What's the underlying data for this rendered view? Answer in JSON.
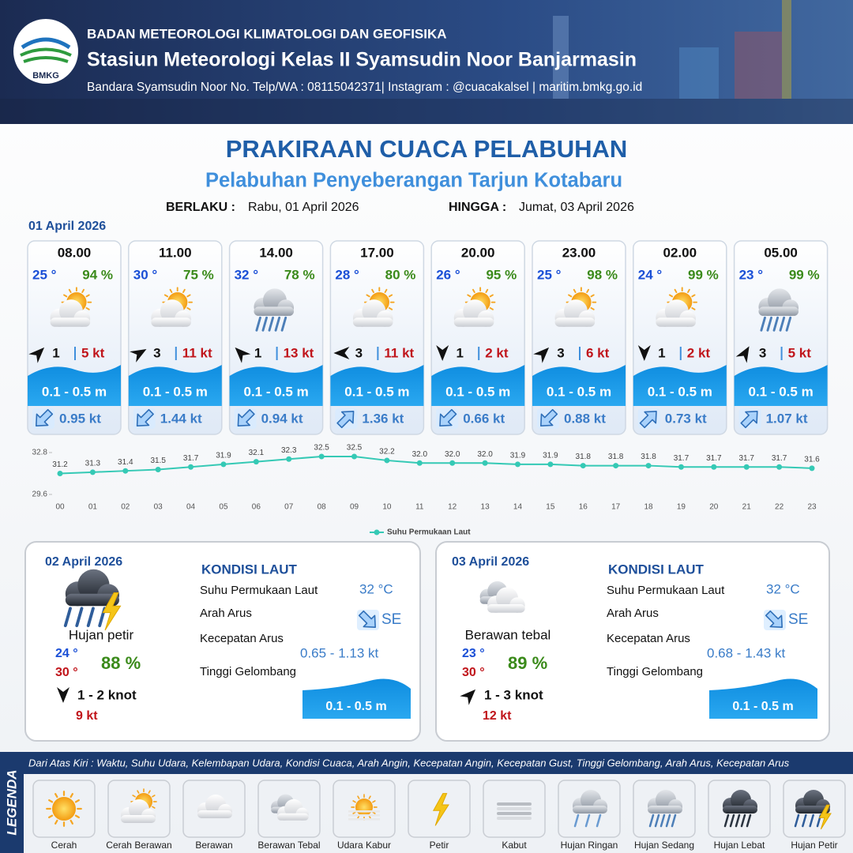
{
  "header": {
    "logo_text": "BMKG",
    "agency": "BADAN METEOROLOGI KLIMATOLOGI DAN GEOFISIKA",
    "station": "Stasiun Meteorologi Kelas II Syamsudin Noor Banjarmasin",
    "contact": "Bandara Syamsudin Noor No. Telp/WA : 08115042371| Instagram : @cuacakalsel | maritim.bmkg.go.id"
  },
  "title": "PRAKIRAAN CUACA PELABUHAN",
  "subtitle": "Pelabuhan Penyeberangan Tarjun Kotabaru",
  "validity": {
    "from_label": "BERLAKU :",
    "from": "Rabu, 01 April 2026",
    "to_label": "HINGGA :",
    "to": "Jumat, 03 April 2026"
  },
  "day1": {
    "date": "01 April 2026",
    "slots": [
      {
        "time": "08.00",
        "temp": "25 °",
        "humidity": "94 %",
        "wind": "1",
        "gust": "5 kt",
        "wave": "0.1 - 0.5 m",
        "current": "0.95 kt"
      },
      {
        "time": "11.00",
        "temp": "30 °",
        "humidity": "75 %",
        "wind": "3",
        "gust": "11 kt",
        "wave": "0.1 - 0.5 m",
        "current": "1.44 kt"
      },
      {
        "time": "14.00",
        "temp": "32 °",
        "humidity": "78 %",
        "wind": "1",
        "gust": "13 kt",
        "wave": "0.1 - 0.5 m",
        "current": "0.94 kt"
      },
      {
        "time": "17.00",
        "temp": "28 °",
        "humidity": "80 %",
        "wind": "3",
        "gust": "11 kt",
        "wave": "0.1 - 0.5 m",
        "current": "1.36 kt"
      },
      {
        "time": "20.00",
        "temp": "26 °",
        "humidity": "95 %",
        "wind": "1",
        "gust": "2 kt",
        "wave": "0.1 - 0.5 m",
        "current": "0.66 kt"
      },
      {
        "time": "23.00",
        "temp": "25 °",
        "humidity": "98 %",
        "wind": "3",
        "gust": "6 kt",
        "wave": "0.1 - 0.5 m",
        "current": "0.88 kt"
      },
      {
        "time": "02.00",
        "temp": "24 °",
        "humidity": "99 %",
        "wind": "1",
        "gust": "2 kt",
        "wave": "0.1 - 0.5 m",
        "current": "0.73 kt"
      },
      {
        "time": "05.00",
        "temp": "23 °",
        "humidity": "99 %",
        "wind": "3",
        "gust": "5 kt",
        "wave": "0.1 - 0.5 m",
        "current": "1.07 kt"
      }
    ]
  },
  "chart_data": {
    "type": "line",
    "categories": [
      "00",
      "01",
      "02",
      "03",
      "04",
      "05",
      "06",
      "07",
      "08",
      "09",
      "10",
      "11",
      "12",
      "13",
      "14",
      "15",
      "16",
      "17",
      "18",
      "19",
      "20",
      "21",
      "22",
      "23"
    ],
    "series": [
      {
        "name": "Suhu Permukaan Laut",
        "color": "#35c9b5",
        "values": [
          31.2,
          31.3,
          31.4,
          31.5,
          31.7,
          31.9,
          32.1,
          32.3,
          32.5,
          32.5,
          32.2,
          32.0,
          32.0,
          32.0,
          31.9,
          31.9,
          31.8,
          31.8,
          31.8,
          31.7,
          31.7,
          31.7,
          31.7,
          31.6
        ],
        "value_labels": [
          "31.2",
          "31.3",
          "31.4",
          "31.5",
          "31.7",
          "31.9",
          "32.1",
          "32.3",
          "32.5",
          "32.5",
          "32.2",
          "32.0",
          "32.0",
          "32.0",
          "31.9",
          "31.9",
          "31.8",
          "31.8",
          "31.8",
          "31.7",
          "31.7",
          "31.7",
          "31.7",
          "31.6"
        ]
      }
    ],
    "ylim": [
      29.6,
      32.8
    ],
    "yticks": [
      29.6,
      32.8
    ]
  },
  "forecasts": [
    {
      "date": "02 April 2026",
      "condition": "Hujan petir",
      "temp_min": "24 °",
      "temp_max": "30 °",
      "humidity": "88 %",
      "wind": "1 - 2 knot",
      "gust": "9 kt",
      "sea": {
        "title": "KONDISI LAUT",
        "sst_label": "Suhu Permukaan Laut",
        "sst": "32 °C",
        "dir_label": "Arah Arus",
        "dir": "SE",
        "speed_label": "Kecepatan Arus",
        "speed": "0.65 - 1.13 kt",
        "wave_label": "Tinggi Gelombang",
        "wave": "0.1 - 0.5 m"
      }
    },
    {
      "date": "03 April 2026",
      "condition": "Berawan tebal",
      "temp_min": "23 °",
      "temp_max": "30 °",
      "humidity": "89 %",
      "wind": "1 - 3 knot",
      "gust": "12 kt",
      "sea": {
        "title": "KONDISI LAUT",
        "sst_label": "Suhu Permukaan Laut",
        "sst": "32 °C",
        "dir_label": "Arah Arus",
        "dir": "SE",
        "speed_label": "Kecepatan Arus",
        "speed": "0.68 - 1.43 kt",
        "wave_label": "Tinggi Gelombang",
        "wave": "0.1 - 0.5 m"
      }
    }
  ],
  "legend": {
    "title": "LEGENDA",
    "description": "Dari Atas Kiri : Waktu, Suhu Udara, Kelembapan Udara, Kondisi Cuaca, Arah Angin, Kecepatan Angin, Kecepatan Gust, Tinggi Gelombang, Arah Arus, Kecepatan Arus",
    "items": [
      "Cerah",
      "Cerah Berawan",
      "Berawan",
      "Berawan Tebal",
      "Udara Kabur",
      "Petir",
      "Kabut",
      "Hujan Ringan",
      "Hujan Sedang",
      "Hujan Lebat",
      "Hujan Petir"
    ]
  }
}
